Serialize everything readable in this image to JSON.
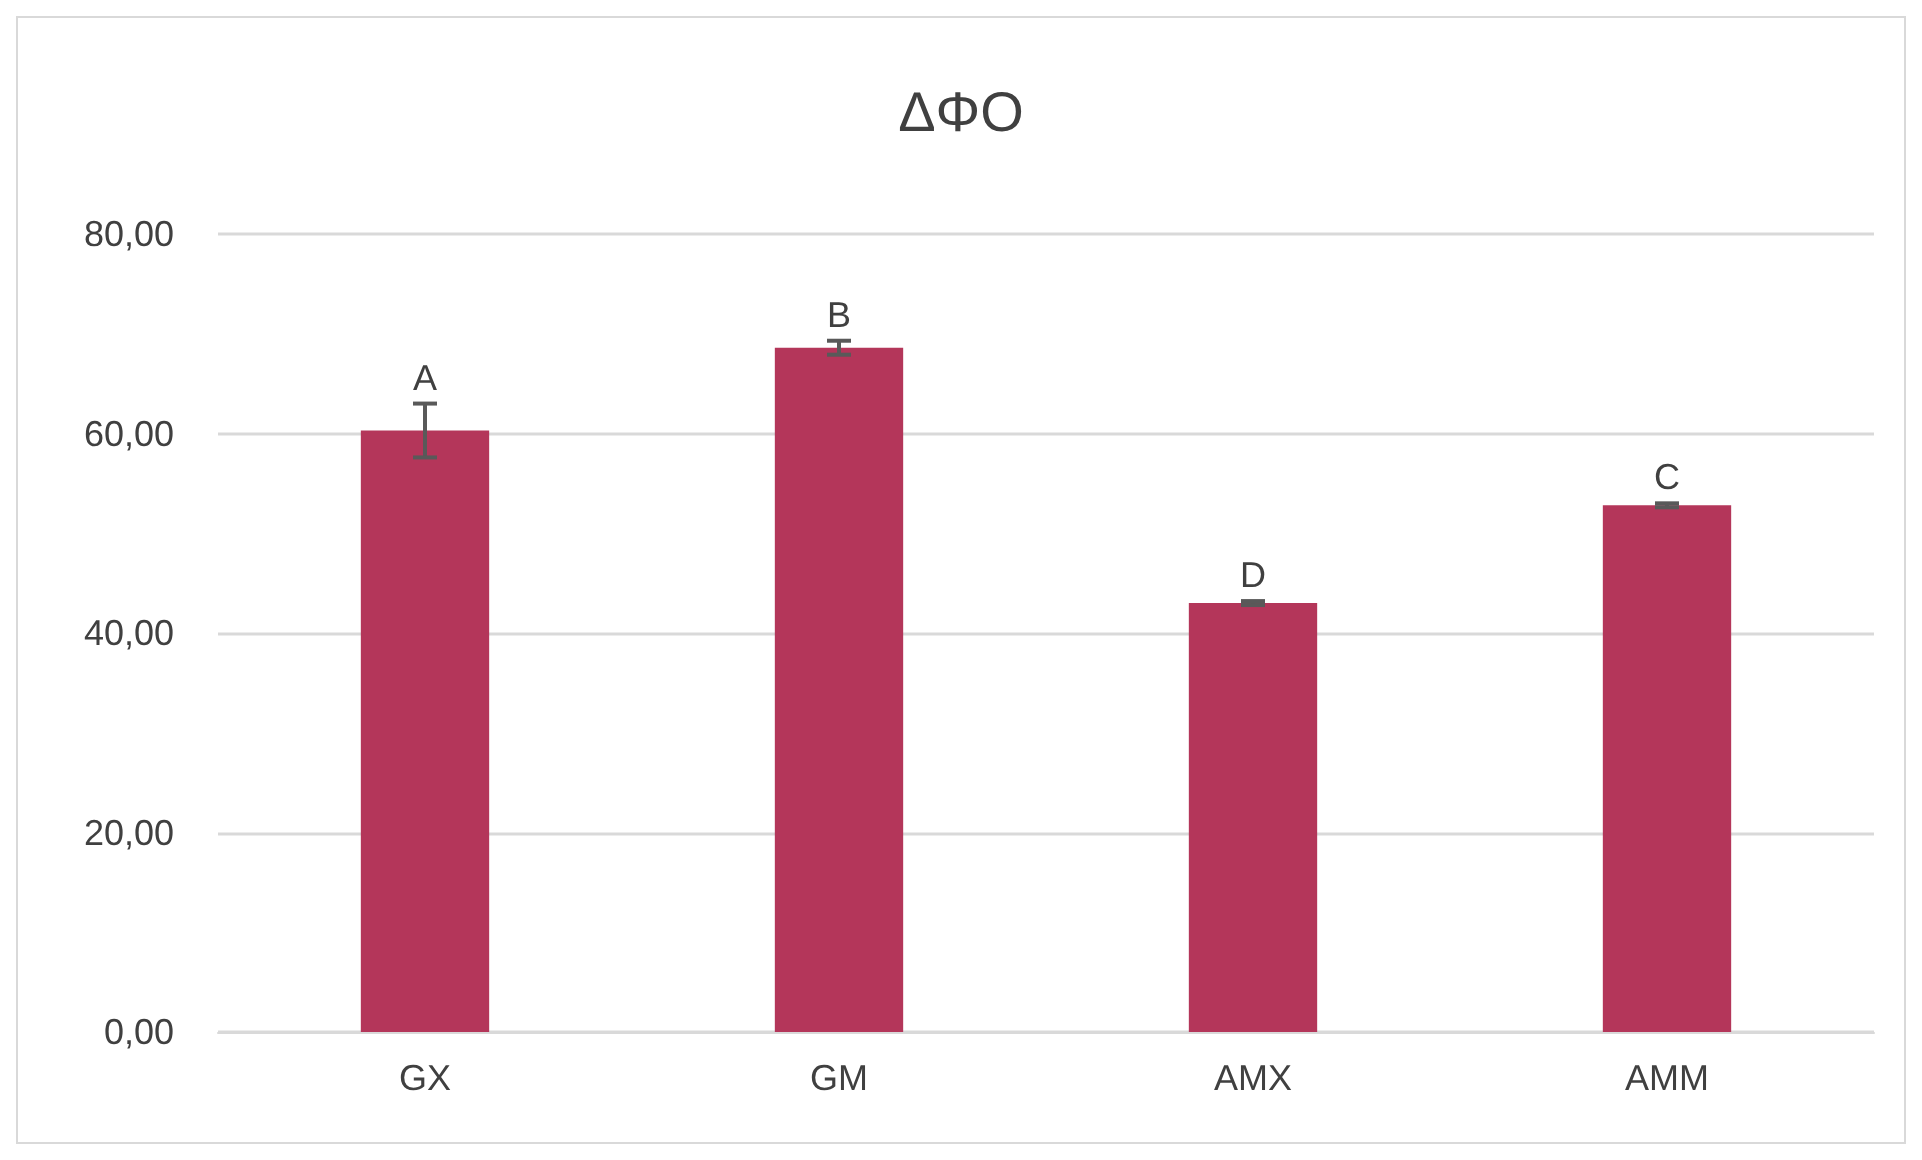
{
  "chart_data": {
    "type": "bar",
    "title": "ΔΦΟ",
    "categories": [
      "GX",
      "GM",
      "AMX",
      "AMM"
    ],
    "values": [
      60.3,
      68.6,
      43.0,
      52.8
    ],
    "errors": [
      2.7,
      0.7,
      0.2,
      0.2
    ],
    "color": "#b4365a",
    "ylim": [
      0,
      80
    ],
    "yticks": [
      {
        "value": 0,
        "label": "0,00"
      },
      {
        "value": 20,
        "label": "20,00"
      },
      {
        "value": 40,
        "label": "40,00"
      },
      {
        "value": 60,
        "label": "60,00"
      },
      {
        "value": 80,
        "label": "80,00"
      }
    ],
    "grid": "y",
    "annotations": [
      {
        "text": "A",
        "x": "GX",
        "y": 63.0
      },
      {
        "text": "B",
        "x": "GM",
        "y": 69.3
      },
      {
        "text": "D",
        "x": "AMX",
        "y": 43.2
      },
      {
        "text": "C",
        "x": "AMM",
        "y": 53.0
      }
    ]
  }
}
